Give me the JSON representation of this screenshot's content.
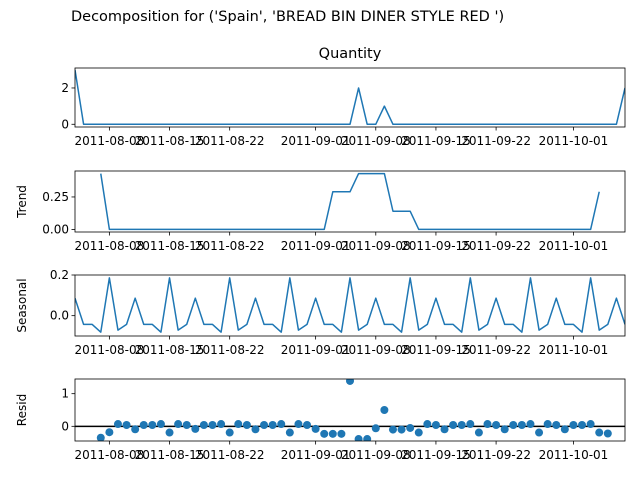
{
  "figure": {
    "suptitle": "Decomposition for ('Spain', 'BREAD BIN DINER STYLE RED ')",
    "line_color": "#1f77b4"
  },
  "chart_data": [
    {
      "type": "line",
      "title": "Quantity",
      "ylabel": "",
      "x_start": "2011-08-04",
      "x_end": "2011-10-07",
      "xlim": [
        "2011-08-04",
        "2011-10-07"
      ],
      "ylim": [
        -0.15,
        3.1
      ],
      "yticks": [
        0,
        2
      ],
      "ytick_labels": [
        "0",
        "2"
      ],
      "xtick_labels": [
        "2011-08-08",
        "2011-08-15",
        "2011-08-22",
        "2011-09-01",
        "2011-09-08",
        "2011-09-15",
        "2011-09-22",
        "2011-10-01"
      ],
      "values": [
        3,
        0,
        0,
        0,
        0,
        0,
        0,
        0,
        0,
        0,
        0,
        0,
        0,
        0,
        0,
        0,
        0,
        0,
        0,
        0,
        0,
        0,
        0,
        0,
        0,
        0,
        0,
        0,
        0,
        0,
        0,
        0,
        0,
        2,
        0,
        0,
        1,
        0,
        0,
        0,
        0,
        0,
        0,
        0,
        0,
        0,
        0,
        0,
        0,
        0,
        0,
        0,
        0,
        0,
        0,
        0,
        0,
        0,
        0,
        0,
        0,
        0,
        0,
        0,
        2
      ]
    },
    {
      "type": "line",
      "title": "",
      "ylabel": "Trend",
      "x_start": "2011-08-07",
      "x_end": "2011-10-04",
      "xlim": [
        "2011-08-04",
        "2011-10-07"
      ],
      "ylim": [
        -0.02,
        0.45
      ],
      "yticks": [
        0,
        0.25
      ],
      "ytick_labels": [
        "0.00",
        "0.25"
      ],
      "xtick_labels": [
        "2011-08-08",
        "2011-08-15",
        "2011-08-22",
        "2011-09-01",
        "2011-09-08",
        "2011-09-15",
        "2011-09-22",
        "2011-10-01"
      ],
      "values": [
        0.43,
        0,
        0,
        0,
        0,
        0,
        0,
        0,
        0,
        0,
        0,
        0,
        0,
        0,
        0,
        0,
        0,
        0,
        0,
        0,
        0,
        0,
        0,
        0,
        0,
        0,
        0,
        0.29,
        0.29,
        0.29,
        0.43,
        0.43,
        0.43,
        0.43,
        0.14,
        0.14,
        0.14,
        0,
        0,
        0,
        0,
        0,
        0,
        0,
        0,
        0,
        0,
        0,
        0,
        0,
        0,
        0,
        0,
        0,
        0,
        0,
        0,
        0,
        0.29
      ]
    },
    {
      "type": "line",
      "title": "",
      "ylabel": "Seasonal",
      "x_start": "2011-08-04",
      "x_end": "2011-10-07",
      "xlim": [
        "2011-08-04",
        "2011-10-07"
      ],
      "ylim": [
        -0.1,
        0.2
      ],
      "yticks": [
        0.0,
        0.2
      ],
      "ytick_labels": [
        "0.0",
        "0.2"
      ],
      "xtick_labels": [
        "2011-08-08",
        "2011-08-15",
        "2011-08-22",
        "2011-09-01",
        "2011-09-08",
        "2011-09-15",
        "2011-09-22",
        "2011-10-01"
      ],
      "values": [
        0.086,
        -0.043,
        -0.043,
        -0.081,
        0.186,
        -0.071,
        -0.043,
        0.086,
        -0.043,
        -0.043,
        -0.081,
        0.186,
        -0.071,
        -0.043,
        0.086,
        -0.043,
        -0.043,
        -0.081,
        0.186,
        -0.071,
        -0.043,
        0.086,
        -0.043,
        -0.043,
        -0.081,
        0.186,
        -0.071,
        -0.043,
        0.086,
        -0.043,
        -0.043,
        -0.081,
        0.186,
        -0.071,
        -0.043,
        0.086,
        -0.043,
        -0.043,
        -0.081,
        0.186,
        -0.071,
        -0.043,
        0.086,
        -0.043,
        -0.043,
        -0.081,
        0.186,
        -0.071,
        -0.043,
        0.086,
        -0.043,
        -0.043,
        -0.081,
        0.186,
        -0.071,
        -0.043,
        0.086,
        -0.043,
        -0.043,
        -0.081,
        0.186,
        -0.071,
        -0.043,
        0.086,
        -0.043
      ]
    },
    {
      "type": "scatter",
      "title": "",
      "ylabel": "Resid",
      "x_start": "2011-08-07",
      "x_end": "2011-10-04",
      "xlim": [
        "2011-08-04",
        "2011-10-07"
      ],
      "ylim": [
        -0.45,
        1.45
      ],
      "yticks": [
        0,
        1
      ],
      "ytick_labels": [
        "0",
        "1"
      ],
      "zero_line": true,
      "xtick_labels": [
        "2011-08-08",
        "2011-08-15",
        "2011-08-22",
        "2011-09-01",
        "2011-09-08",
        "2011-09-15",
        "2011-09-22",
        "2011-10-01"
      ],
      "values": [
        -0.35,
        -0.18,
        0.07,
        0.04,
        -0.09,
        0.04,
        0.04,
        0.07,
        -0.19,
        0.07,
        0.04,
        -0.08,
        0.04,
        0.04,
        0.07,
        -0.19,
        0.07,
        0.04,
        -0.09,
        0.04,
        0.04,
        0.07,
        -0.19,
        0.07,
        0.04,
        -0.08,
        -0.23,
        -0.23,
        -0.23,
        1.39,
        -0.39,
        -0.39,
        -0.06,
        0.5,
        -0.1,
        -0.1,
        -0.05,
        -0.19,
        0.07,
        0.04,
        -0.09,
        0.04,
        0.04,
        0.07,
        -0.19,
        0.07,
        0.04,
        -0.09,
        0.04,
        0.04,
        0.07,
        -0.19,
        0.07,
        0.04,
        -0.09,
        0.04,
        0.04,
        0.07,
        -0.19,
        -0.22
      ]
    }
  ]
}
